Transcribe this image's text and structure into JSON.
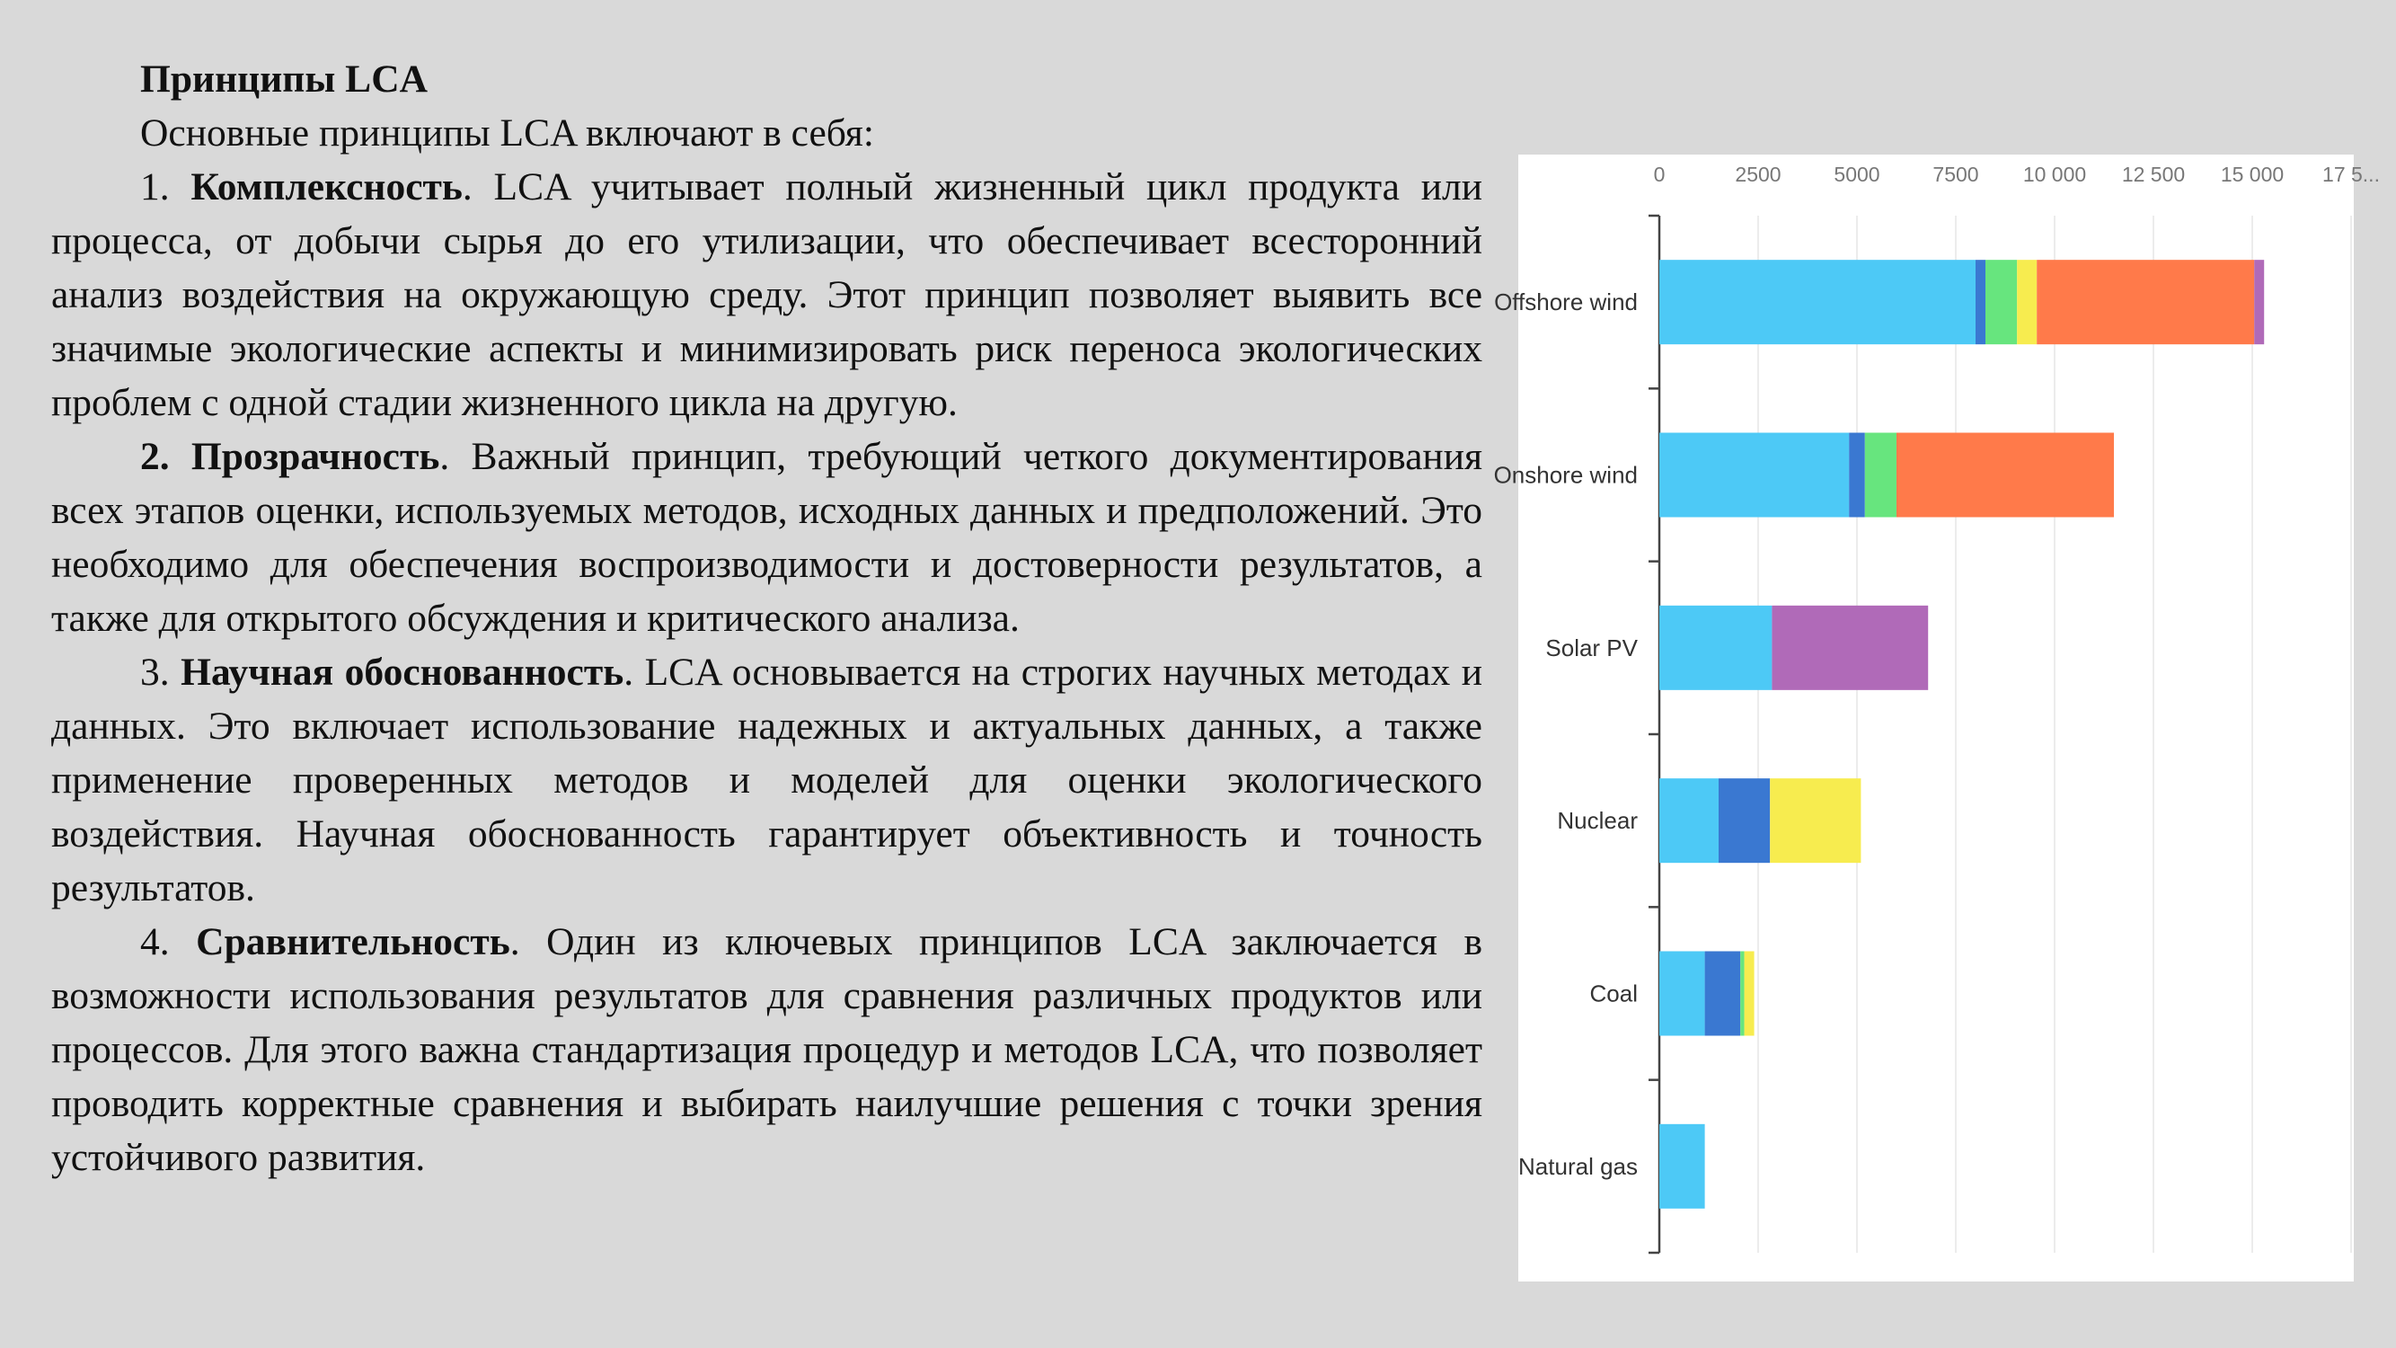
{
  "document": {
    "title": "Принципы LCA",
    "intro": "Основные принципы LCA включают в себя:",
    "principles": [
      {
        "number": "1.",
        "name": "Комплексность",
        "text": ". LCA учитывает полный жизненный цикл продукта или процесса, от добычи сырья до его утилизации, что обеспечивает всесторонний анализ воздействия на окружающую среду. Этот принцип позволяет выявить все значимые экологические аспекты и минимизировать риск переноса экологических проблем с одной стадии жизненного цикла на другую."
      },
      {
        "number": "2.",
        "name": "Прозрачность",
        "text": ". Важный принцип, требующий четкого документирования всех этапов оценки, используемых методов, исходных данных и предположений. Это необходимо для обеспечения воспроизводимости и достоверности результатов, а также для открытого обсуждения и критического анализа."
      },
      {
        "number": "3.",
        "name": "Научная обоснованность",
        "text": ". LCA основывается на строгих научных методах и данных. Это включает использование надежных и актуальных данных, а также применение проверенных методов и моделей для оценки экологического воздействия. Научная обоснованность гарантирует объективность и точность результатов."
      },
      {
        "number": "4.",
        "name": "Сравнительность",
        "text": ". Один из ключевых принципов LCA заключается в возможности использования результатов для сравнения различных продуктов или процессов. Для этого важна стандартизация процедур и методов LCA, что позволяет проводить корректные сравнения и выбирать наилучшие решения с точки зрения устойчивого развития."
      }
    ]
  },
  "chart_data": {
    "type": "bar",
    "orientation": "horizontal",
    "stacked": true,
    "title": "",
    "xlabel": "",
    "ylabel": "",
    "xlim": [
      0,
      17500
    ],
    "x_ticks": [
      "0",
      "2500",
      "5000",
      "7500",
      "10 000",
      "12 500",
      "15 000",
      "17 5..."
    ],
    "x_tick_values": [
      0,
      2500,
      5000,
      7500,
      10000,
      12500,
      15000,
      17500
    ],
    "x_axis_position": "top",
    "grid": true,
    "categories": [
      "Offshore wind",
      "Onshore wind",
      "Solar PV",
      "Nuclear",
      "Coal",
      "Natural gas"
    ],
    "segment_colors": [
      "#4dc9f6",
      "#3a78d1",
      "#67e57e",
      "#f7ec4f",
      "#ff7a4a",
      "#b06ab8"
    ],
    "series": [
      {
        "values": [
          8000,
          4800,
          2850,
          1500,
          1150,
          1150
        ]
      },
      {
        "values": [
          250,
          400,
          0,
          1300,
          900,
          0
        ]
      },
      {
        "values": [
          800,
          800,
          0,
          0,
          100,
          0
        ]
      },
      {
        "values": [
          500,
          0,
          0,
          2300,
          250,
          0
        ]
      },
      {
        "values": [
          5500,
          5500,
          0,
          0,
          0,
          0
        ]
      },
      {
        "values": [
          250,
          0,
          3950,
          0,
          0,
          0
        ]
      }
    ]
  }
}
